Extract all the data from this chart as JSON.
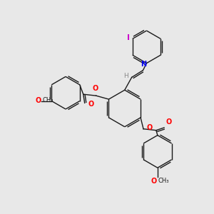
{
  "background_color": "#e8e8e8",
  "bond_color": "#1a1a1a",
  "atom_colors": {
    "O": "#ff0000",
    "N": "#0000ee",
    "I": "#cc00cc",
    "H": "#888888",
    "C": "#1a1a1a"
  },
  "figsize": [
    3.0,
    3.0
  ],
  "dpi": 100
}
